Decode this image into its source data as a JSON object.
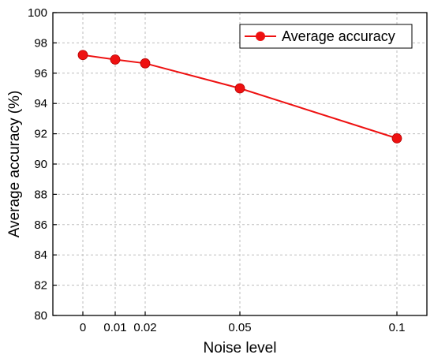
{
  "chart_data": {
    "type": "line",
    "title": "",
    "xlabel": "Noise level",
    "ylabel": "Average accuracy (%)",
    "x": [
      0,
      0.01,
      0.02,
      0.05,
      0.1
    ],
    "x_tick_labels": [
      "0",
      "0.01",
      "0.02",
      "0.05",
      "0.1"
    ],
    "ylim": [
      80,
      100
    ],
    "y_ticks": [
      80,
      82,
      84,
      86,
      88,
      90,
      92,
      94,
      96,
      98,
      100
    ],
    "grid": true,
    "legend_position": "top-right",
    "series": [
      {
        "name": "Average accuracy",
        "color": "#ee1111",
        "marker": "circle",
        "values": [
          97.2,
          96.9,
          96.65,
          95.0,
          91.7
        ]
      }
    ]
  }
}
